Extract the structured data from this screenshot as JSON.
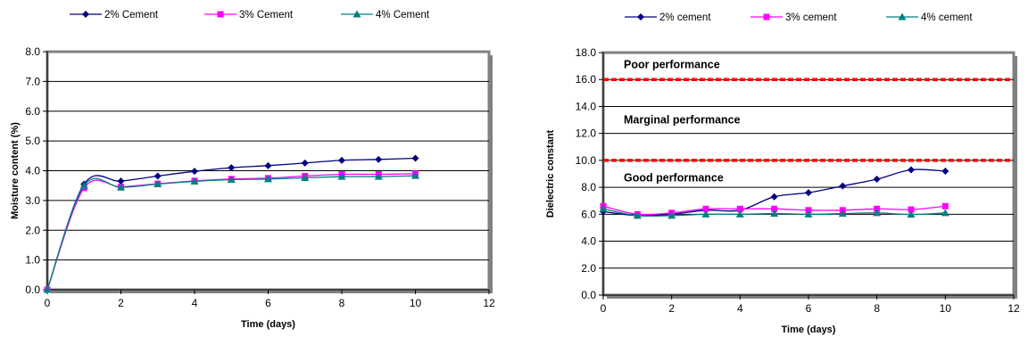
{
  "colors": {
    "series": [
      "#000080",
      "#FF00FF",
      "#008080"
    ],
    "threshold": "#FF0000",
    "grid": "#000000",
    "plot_border": "#808080"
  },
  "chart_data": [
    {
      "type": "line",
      "title": "",
      "xlabel": "Time (days)",
      "ylabel": "Moisture content (%)",
      "xlim": [
        0,
        12
      ],
      "ylim": [
        0,
        8
      ],
      "xticks": [
        0,
        2,
        4,
        6,
        8,
        10,
        12
      ],
      "yticks": [
        0,
        1,
        2,
        3,
        4,
        5,
        6,
        7,
        8
      ],
      "ytick_decimals": 1,
      "grid": "horizontal",
      "legend_position": "top",
      "series": [
        {
          "name": "2% Cement",
          "marker": "diamond",
          "x": [
            0,
            1,
            2,
            3,
            4,
            5,
            6,
            7,
            8,
            9,
            10
          ],
          "y": [
            0.0,
            3.55,
            3.65,
            3.82,
            3.98,
            4.1,
            4.17,
            4.26,
            4.35,
            4.38,
            4.42
          ]
        },
        {
          "name": "3% Cement",
          "marker": "square",
          "x": [
            0,
            1,
            2,
            3,
            4,
            5,
            6,
            7,
            8,
            9,
            10
          ],
          "y": [
            0.0,
            3.42,
            3.46,
            3.56,
            3.66,
            3.72,
            3.75,
            3.82,
            3.88,
            3.88,
            3.9
          ]
        },
        {
          "name": "4% Cement",
          "marker": "triangle",
          "x": [
            0,
            1,
            2,
            3,
            4,
            5,
            6,
            7,
            8,
            9,
            10
          ],
          "y": [
            0.0,
            3.5,
            3.44,
            3.55,
            3.64,
            3.7,
            3.72,
            3.76,
            3.8,
            3.8,
            3.83
          ]
        }
      ]
    },
    {
      "type": "line",
      "title": "",
      "xlabel": "Time (days)",
      "ylabel": "Dielectric constant",
      "xlim": [
        0,
        12
      ],
      "ylim": [
        0,
        18
      ],
      "xticks": [
        0,
        2,
        4,
        6,
        8,
        10,
        12
      ],
      "yticks": [
        0,
        2,
        4,
        6,
        8,
        10,
        12,
        14,
        16,
        18
      ],
      "ytick_decimals": 1,
      "grid": "horizontal",
      "legend_position": "top",
      "series": [
        {
          "name": "2% cement",
          "marker": "diamond",
          "x": [
            0,
            1,
            2,
            3,
            4,
            5,
            6,
            7,
            8,
            9,
            10
          ],
          "y": [
            6.2,
            5.9,
            6.0,
            6.3,
            6.3,
            7.3,
            7.6,
            8.1,
            8.6,
            9.3,
            9.2
          ]
        },
        {
          "name": "3% cement",
          "marker": "square",
          "x": [
            0,
            1,
            2,
            3,
            4,
            5,
            6,
            7,
            8,
            9,
            10
          ],
          "y": [
            6.6,
            6.0,
            6.1,
            6.4,
            6.4,
            6.4,
            6.3,
            6.3,
            6.4,
            6.35,
            6.6
          ]
        },
        {
          "name": "4% cement",
          "marker": "triangle",
          "x": [
            0,
            1,
            2,
            3,
            4,
            5,
            6,
            7,
            8,
            9,
            10
          ],
          "y": [
            6.4,
            5.9,
            5.9,
            6.0,
            6.0,
            6.05,
            6.0,
            6.05,
            6.1,
            5.98,
            6.1
          ]
        }
      ],
      "thresholds": [
        16,
        10
      ],
      "annotations": [
        {
          "text": "Poor performance",
          "x": 0.6,
          "y": 17.1
        },
        {
          "text": "Marginal performance",
          "x": 0.6,
          "y": 13.0
        },
        {
          "text": "Good performance",
          "x": 0.6,
          "y": 8.7
        }
      ]
    }
  ]
}
